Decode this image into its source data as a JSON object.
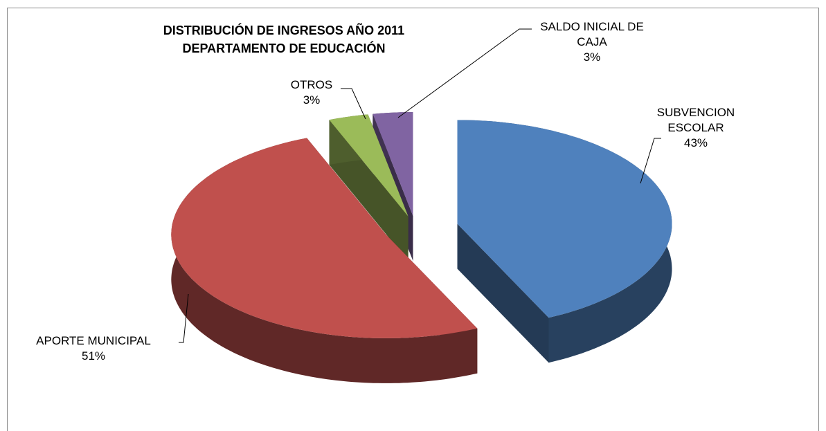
{
  "chart_data": {
    "type": "pie",
    "title": "DISTRIBUCIÓN DE INGRESOS AÑO 2011",
    "subtitle": "DEPARTAMENTO DE EDUCACIÓN",
    "categories": [
      "SUBVENCION ESCOLAR",
      "APORTE MUNICIPAL",
      "OTROS",
      "SALDO INICIAL DE CAJA"
    ],
    "values": [
      43,
      51,
      3,
      3
    ],
    "value_labels": [
      "43%",
      "51%",
      "3%",
      "3%"
    ],
    "colors": [
      "#4f81bd",
      "#c0504d",
      "#9bbb59",
      "#8064a2"
    ],
    "three_d": true
  }
}
